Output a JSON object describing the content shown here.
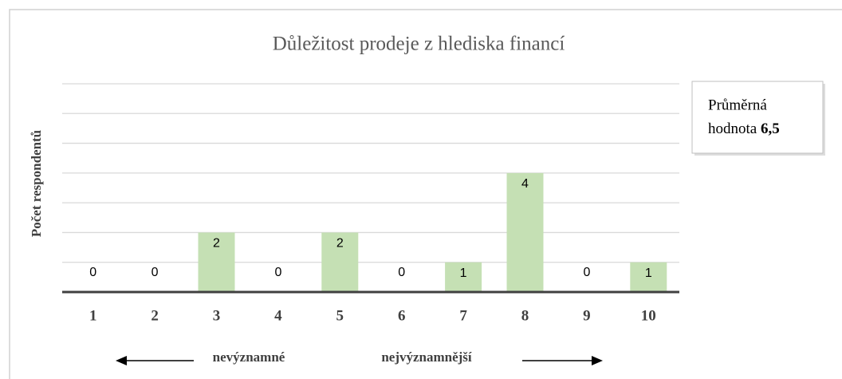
{
  "chart_data": {
    "type": "bar",
    "title": "Důležitost prodeje z hlediska financí",
    "y_label": "Počet respondentů",
    "categories": [
      "1",
      "2",
      "3",
      "4",
      "5",
      "6",
      "7",
      "8",
      "9",
      "10"
    ],
    "values": [
      0,
      0,
      2,
      0,
      2,
      0,
      1,
      4,
      0,
      1
    ],
    "color": "#c5e0b4",
    "ylim": [
      0,
      7
    ],
    "yticks": [
      0,
      1,
      2,
      3,
      4,
      5,
      6,
      7
    ],
    "grid": true,
    "x_annotations": [
      "nevýznamné",
      "nejvýznamnější"
    ],
    "annotation": {
      "lines": [
        "Průměrná",
        "hodnota"
      ],
      "emphasis": "6,5"
    }
  }
}
